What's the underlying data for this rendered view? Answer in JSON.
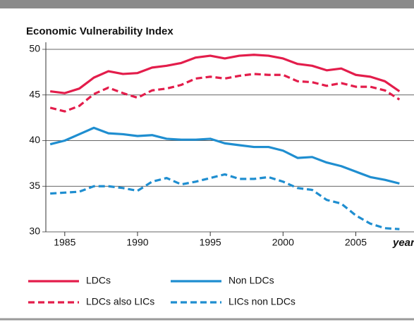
{
  "chart_data": {
    "type": "line",
    "title": "Economic Vulnerability Index",
    "xlabel": "year",
    "x": [
      1984,
      1985,
      1986,
      1987,
      1988,
      1989,
      1990,
      1991,
      1992,
      1993,
      1994,
      1995,
      1996,
      1997,
      1998,
      1999,
      2000,
      2001,
      2002,
      2003,
      2004,
      2005,
      2006,
      2007,
      2008
    ],
    "series": [
      {
        "name": "LDCs",
        "color": "#e31d4b",
        "dash": false,
        "values": [
          45.4,
          45.2,
          45.7,
          46.9,
          47.6,
          47.3,
          47.4,
          48.0,
          48.2,
          48.5,
          49.1,
          49.3,
          49.0,
          49.3,
          49.4,
          49.3,
          49.0,
          48.4,
          48.2,
          47.7,
          47.9,
          47.2,
          47.0,
          46.5,
          45.4
        ]
      },
      {
        "name": "Non LDCs",
        "color": "#1f8ed0",
        "dash": false,
        "values": [
          39.6,
          40.0,
          40.7,
          41.4,
          40.8,
          40.7,
          40.5,
          40.6,
          40.2,
          40.1,
          40.1,
          40.2,
          39.7,
          39.5,
          39.3,
          39.3,
          38.9,
          38.1,
          38.2,
          37.6,
          37.2,
          36.6,
          36.0,
          35.7,
          35.3
        ]
      },
      {
        "name": "LDCs also LICs",
        "color": "#e31d4b",
        "dash": true,
        "values": [
          43.6,
          43.2,
          43.8,
          45.1,
          45.8,
          45.2,
          44.7,
          45.5,
          45.7,
          46.1,
          46.8,
          47.0,
          46.8,
          47.1,
          47.3,
          47.2,
          47.2,
          46.5,
          46.4,
          46.0,
          46.3,
          45.9,
          45.9,
          45.5,
          44.5
        ]
      },
      {
        "name": "LICs non LDCs",
        "color": "#1f8ed0",
        "dash": true,
        "values": [
          34.2,
          34.3,
          34.4,
          35.0,
          35.0,
          34.8,
          34.5,
          35.5,
          35.9,
          35.2,
          35.5,
          35.9,
          36.3,
          35.8,
          35.8,
          36.0,
          35.5,
          34.8,
          34.6,
          33.5,
          33.1,
          31.8,
          30.9,
          30.4,
          30.3
        ]
      }
    ],
    "xlim": [
      1983.7,
      2009.0
    ],
    "ylim": [
      30,
      50
    ],
    "xticks": [
      1985,
      1990,
      1995,
      2000,
      2005
    ],
    "yticks": [
      30,
      35,
      40,
      45,
      50
    ],
    "grid": true
  }
}
